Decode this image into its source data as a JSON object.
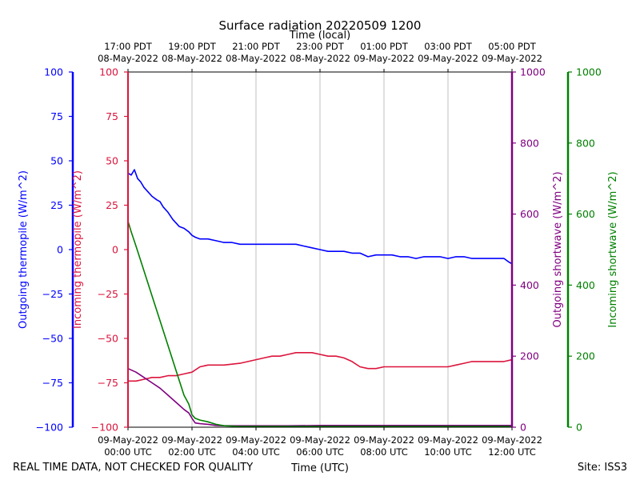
{
  "chart_data": {
    "type": "line",
    "title": "Surface radiation 20220509 1200",
    "top_axis_title": "Time (local)",
    "xlabel": "Time (UTC)",
    "footer_left": "REAL TIME DATA, NOT CHECKED FOR QUALITY",
    "footer_right": "Site: ISS3",
    "xlim": [
      0,
      12
    ],
    "x_ticks": [
      0,
      2,
      4,
      6,
      8,
      10,
      12
    ],
    "x_tick_labels_utc": [
      [
        "09-May-2022",
        "00:00 UTC"
      ],
      [
        "09-May-2022",
        "02:00 UTC"
      ],
      [
        "09-May-2022",
        "04:00 UTC"
      ],
      [
        "09-May-2022",
        "06:00 UTC"
      ],
      [
        "09-May-2022",
        "08:00 UTC"
      ],
      [
        "09-May-2022",
        "10:00 UTC"
      ],
      [
        "09-May-2022",
        "12:00 UTC"
      ]
    ],
    "x_tick_labels_local": [
      [
        "17:00 PDT",
        "08-May-2022"
      ],
      [
        "19:00 PDT",
        "08-May-2022"
      ],
      [
        "21:00 PDT",
        "08-May-2022"
      ],
      [
        "23:00 PDT",
        "08-May-2022"
      ],
      [
        "01:00 PDT",
        "09-May-2022"
      ],
      [
        "03:00 PDT",
        "09-May-2022"
      ],
      [
        "05:00 PDT",
        "09-May-2022"
      ]
    ],
    "grid": true,
    "axes": {
      "outgoing_thermopile": {
        "label": "Outgoing thermopile (W/m^2)",
        "color": "#0000ff",
        "ylim": [
          -100,
          100
        ],
        "ticks": [
          -100,
          -75,
          -50,
          -25,
          0,
          25,
          50,
          75,
          100
        ]
      },
      "incoming_thermopile": {
        "label": "Incoming thermopile (W/m^2)",
        "color": "#dc143c",
        "ylim": [
          -100,
          100
        ],
        "ticks": [
          -100,
          -75,
          -50,
          -25,
          0,
          25,
          50,
          75,
          100
        ]
      },
      "outgoing_shortwave": {
        "label": "Outgoing shortwave (W/m^2)",
        "color": "#800080",
        "ylim": [
          0,
          1000
        ],
        "ticks": [
          0,
          200,
          400,
          600,
          800,
          1000
        ]
      },
      "incoming_shortwave": {
        "label": "Incoming shortwave (W/m^2)",
        "color": "#008000",
        "ylim": [
          0,
          1000
        ],
        "ticks": [
          0,
          200,
          400,
          600,
          800,
          1000
        ]
      }
    },
    "series": [
      {
        "name": "Outgoing thermopile",
        "axis": "outgoing_thermopile",
        "color": "#0000ff",
        "x": [
          0,
          0.1,
          0.2,
          0.3,
          0.4,
          0.5,
          0.6,
          0.75,
          0.9,
          1.0,
          1.1,
          1.25,
          1.4,
          1.5,
          1.6,
          1.75,
          1.9,
          2.0,
          2.1,
          2.25,
          2.5,
          2.75,
          3.0,
          3.25,
          3.5,
          4.0,
          4.5,
          5.0,
          5.25,
          5.5,
          5.75,
          6.0,
          6.25,
          6.5,
          6.75,
          7.0,
          7.25,
          7.5,
          7.75,
          8.0,
          8.25,
          8.5,
          8.75,
          9.0,
          9.25,
          9.5,
          9.75,
          10.0,
          10.25,
          10.5,
          10.75,
          11.0,
          11.25,
          11.5,
          11.75,
          11.9,
          12.0
        ],
        "y": [
          43,
          42,
          45,
          40,
          38,
          35,
          33,
          30,
          28,
          27,
          24,
          21,
          17,
          15,
          13,
          12,
          10,
          8,
          7,
          6,
          6,
          5,
          4,
          4,
          3,
          3,
          3,
          3,
          3,
          2,
          1,
          0,
          -1,
          -1,
          -1,
          -2,
          -2,
          -4,
          -3,
          -3,
          -3,
          -4,
          -4,
          -5,
          -4,
          -4,
          -4,
          -5,
          -4,
          -4,
          -5,
          -5,
          -5,
          -5,
          -5,
          -7,
          -8
        ]
      },
      {
        "name": "Incoming thermopile",
        "axis": "incoming_thermopile",
        "color": "#dc143c",
        "x": [
          0,
          0.25,
          0.5,
          0.75,
          1.0,
          1.25,
          1.5,
          1.75,
          2.0,
          2.25,
          2.5,
          3.0,
          3.5,
          3.75,
          4.0,
          4.25,
          4.5,
          4.75,
          5.0,
          5.25,
          5.5,
          5.75,
          6.0,
          6.25,
          6.5,
          6.75,
          7.0,
          7.25,
          7.5,
          7.75,
          8.0,
          8.25,
          8.5,
          8.75,
          9.0,
          9.25,
          9.5,
          9.75,
          10.0,
          10.25,
          10.5,
          10.75,
          11.0,
          11.25,
          11.5,
          11.75,
          12.0
        ],
        "y": [
          -74,
          -74,
          -73,
          -72,
          -72,
          -71,
          -71,
          -70,
          -69,
          -66,
          -65,
          -65,
          -64,
          -63,
          -62,
          -61,
          -60,
          -60,
          -59,
          -58,
          -58,
          -58,
          -59,
          -60,
          -60,
          -61,
          -63,
          -66,
          -67,
          -67,
          -66,
          -66,
          -66,
          -66,
          -66,
          -66,
          -66,
          -66,
          -66,
          -65,
          -64,
          -63,
          -63,
          -63,
          -63,
          -63,
          -62
        ]
      },
      {
        "name": "Outgoing shortwave",
        "axis": "outgoing_shortwave",
        "color": "#800080",
        "x": [
          0,
          0.25,
          0.5,
          0.75,
          1.0,
          1.25,
          1.5,
          1.75,
          1.9,
          2.0,
          2.1,
          2.25,
          2.5,
          2.75,
          3.0,
          3.5,
          4.0,
          5.0,
          6.0,
          7.0,
          8.0,
          9.0,
          10.0,
          11.0,
          12.0
        ],
        "y": [
          165,
          155,
          140,
          125,
          110,
          90,
          70,
          50,
          40,
          25,
          12,
          10,
          8,
          5,
          4,
          4,
          4,
          4,
          5,
          5,
          5,
          5,
          5,
          5,
          5
        ]
      },
      {
        "name": "Incoming shortwave",
        "axis": "incoming_shortwave",
        "color": "#008000",
        "x": [
          0,
          0.1,
          0.25,
          0.5,
          0.75,
          1.0,
          1.25,
          1.5,
          1.75,
          1.9,
          2.0,
          2.1,
          2.25,
          2.5,
          2.75,
          3.0,
          3.5,
          4.0,
          5.0,
          6.0,
          7.0,
          8.0,
          9.0,
          10.0,
          11.0,
          12.0
        ],
        "y": [
          580,
          550,
          510,
          440,
          370,
          300,
          230,
          160,
          90,
          65,
          35,
          25,
          20,
          15,
          8,
          4,
          2,
          2,
          2,
          2,
          2,
          2,
          2,
          2,
          2,
          2
        ]
      }
    ]
  }
}
